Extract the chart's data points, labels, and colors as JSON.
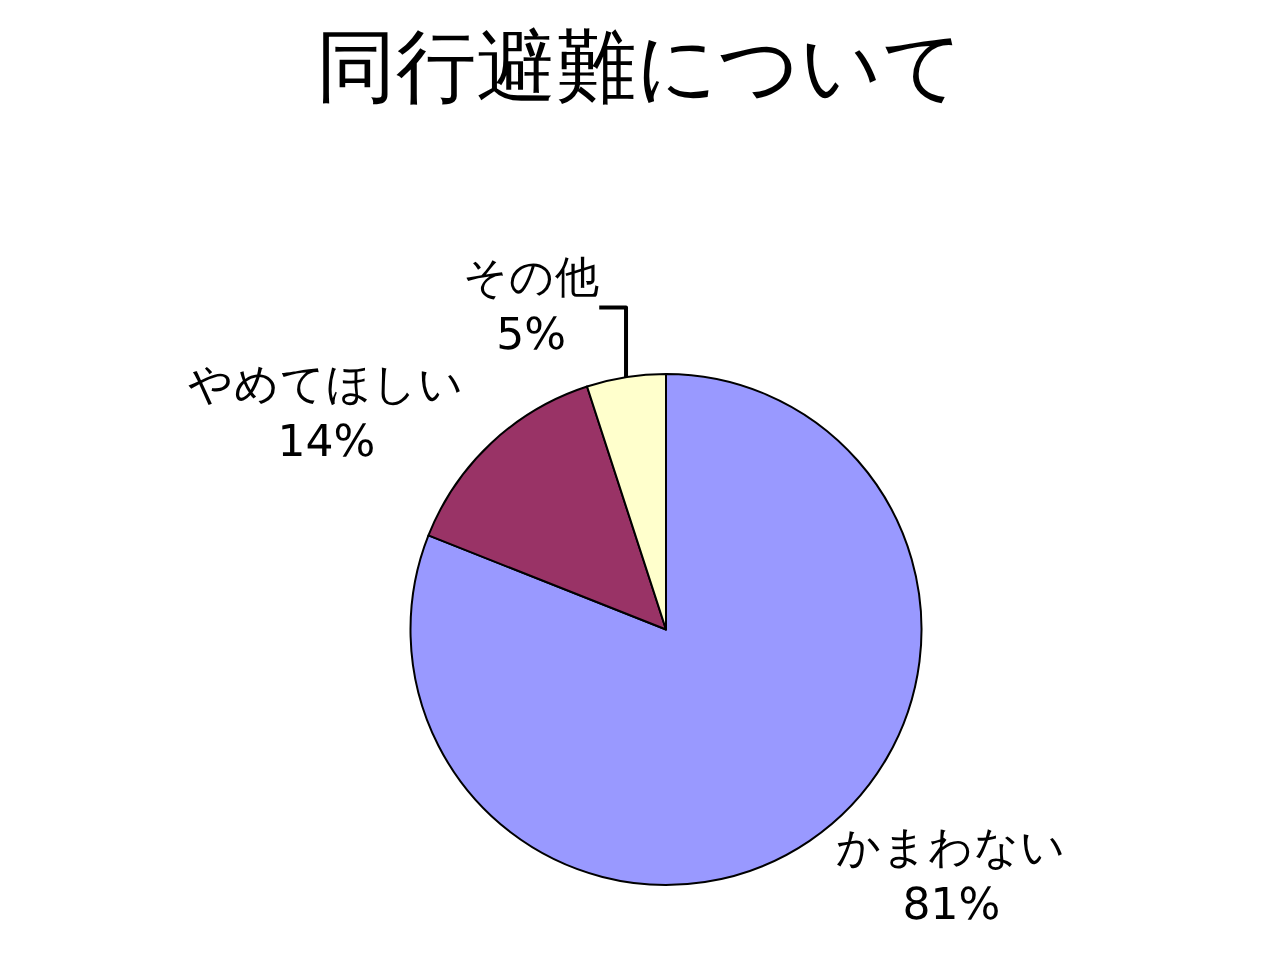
{
  "chart_data": {
    "type": "pie",
    "title": "同行避難について",
    "categories": [
      "かまわない",
      "やめてほしい",
      "その他"
    ],
    "values": [
      81,
      14,
      5
    ],
    "value_labels": [
      "81%",
      "14%",
      "5%"
    ],
    "colors": [
      "#9999ff",
      "#993366",
      "#ffffcc"
    ],
    "legend": false
  }
}
